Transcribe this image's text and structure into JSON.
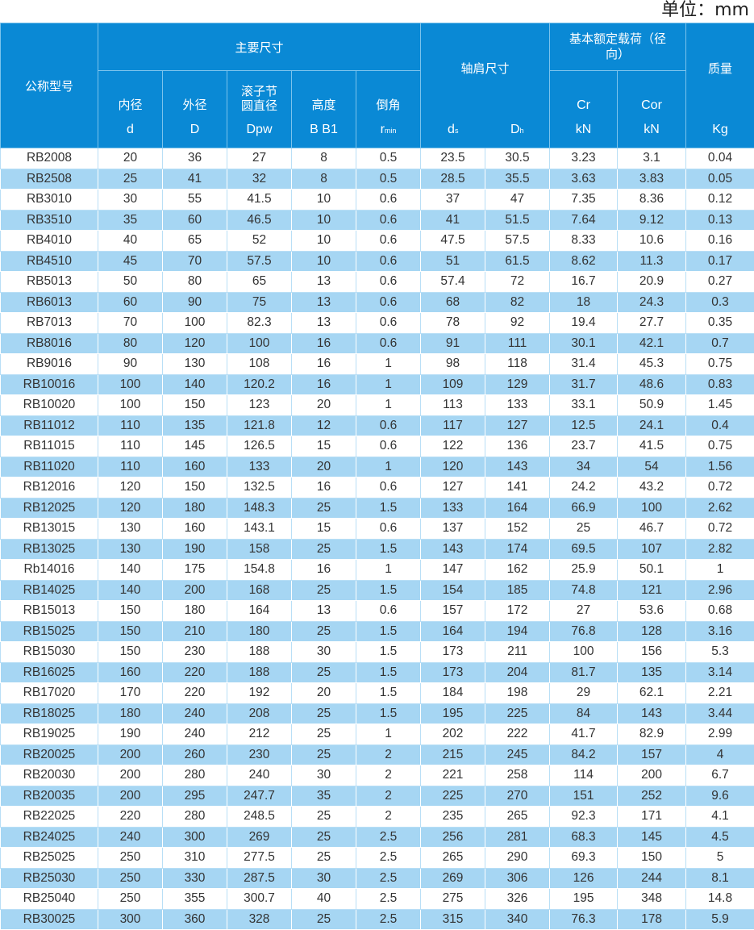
{
  "unit_label": "单位：mm",
  "colors": {
    "header": "#0a89d5",
    "stripe": "#a6d6f3"
  },
  "header": {
    "model": "公称型号",
    "main_dims": "主要尺寸",
    "inner": "内径",
    "outer": "外径",
    "pitch": "滚子节圆直径",
    "height": "高度",
    "chamfer": "倒角",
    "d": "d",
    "D": "D",
    "dpw": "Dpw",
    "b": "B B1",
    "r": "r",
    "r_sub": "min",
    "shoulder": "轴肩尺寸",
    "ds": "d",
    "ds_sub": "s",
    "dh": "D",
    "dh_sub": "h",
    "load": "基本额定载荷（径向）",
    "cr": "Cr",
    "cor": "Cor",
    "kn1": "kN",
    "kn2": "kN",
    "mass": "质量",
    "kg": "Kg"
  },
  "rows": [
    [
      "RB2008",
      "20",
      "36",
      "27",
      "8",
      "0.5",
      "23.5",
      "30.5",
      "3.23",
      "3.1",
      "0.04"
    ],
    [
      "RB2508",
      "25",
      "41",
      "32",
      "8",
      "0.5",
      "28.5",
      "35.5",
      "3.63",
      "3.83",
      "0.05"
    ],
    [
      "RB3010",
      "30",
      "55",
      "41.5",
      "10",
      "0.6",
      "37",
      "47",
      "7.35",
      "8.36",
      "0.12"
    ],
    [
      "RB3510",
      "35",
      "60",
      "46.5",
      "10",
      "0.6",
      "41",
      "51.5",
      "7.64",
      "9.12",
      "0.13"
    ],
    [
      "RB4010",
      "40",
      "65",
      "52",
      "10",
      "0.6",
      "47.5",
      "57.5",
      "8.33",
      "10.6",
      "0.16"
    ],
    [
      "RB4510",
      "45",
      "70",
      "57.5",
      "10",
      "0.6",
      "51",
      "61.5",
      "8.62",
      "11.3",
      "0.17"
    ],
    [
      "RB5013",
      "50",
      "80",
      "65",
      "13",
      "0.6",
      "57.4",
      "72",
      "16.7",
      "20.9",
      "0.27"
    ],
    [
      "RB6013",
      "60",
      "90",
      "75",
      "13",
      "0.6",
      "68",
      "82",
      "18",
      "24.3",
      "0.3"
    ],
    [
      "RB7013",
      "70",
      "100",
      "82.3",
      "13",
      "0.6",
      "78",
      "92",
      "19.4",
      "27.7",
      "0.35"
    ],
    [
      "RB8016",
      "80",
      "120",
      "100",
      "16",
      "0.6",
      "91",
      "111",
      "30.1",
      "42.1",
      "0.7"
    ],
    [
      "RB9016",
      "90",
      "130",
      "108",
      "16",
      "1",
      "98",
      "118",
      "31.4",
      "45.3",
      "0.75"
    ],
    [
      "RB10016",
      "100",
      "140",
      "120.2",
      "16",
      "1",
      "109",
      "129",
      "31.7",
      "48.6",
      "0.83"
    ],
    [
      "RB10020",
      "100",
      "150",
      "123",
      "20",
      "1",
      "113",
      "133",
      "33.1",
      "50.9",
      "1.45"
    ],
    [
      "RB11012",
      "110",
      "135",
      "121.8",
      "12",
      "0.6",
      "117",
      "127",
      "12.5",
      "24.1",
      "0.4"
    ],
    [
      "RB11015",
      "110",
      "145",
      "126.5",
      "15",
      "0.6",
      "122",
      "136",
      "23.7",
      "41.5",
      "0.75"
    ],
    [
      "RB11020",
      "110",
      "160",
      "133",
      "20",
      "1",
      "120",
      "143",
      "34",
      "54",
      "1.56"
    ],
    [
      "RB12016",
      "120",
      "150",
      "132.5",
      "16",
      "0.6",
      "127",
      "141",
      "24.2",
      "43.2",
      "0.72"
    ],
    [
      "RB12025",
      "120",
      "180",
      "148.3",
      "25",
      "1.5",
      "133",
      "164",
      "66.9",
      "100",
      "2.62"
    ],
    [
      "RB13015",
      "130",
      "160",
      "143.1",
      "15",
      "0.6",
      "137",
      "152",
      "25",
      "46.7",
      "0.72"
    ],
    [
      "RB13025",
      "130",
      "190",
      "158",
      "25",
      "1.5",
      "143",
      "174",
      "69.5",
      "107",
      "2.82"
    ],
    [
      "Rb14016",
      "140",
      "175",
      "154.8",
      "16",
      "1",
      "147",
      "162",
      "25.9",
      "50.1",
      "1"
    ],
    [
      "RB14025",
      "140",
      "200",
      "168",
      "25",
      "1.5",
      "154",
      "185",
      "74.8",
      "121",
      "2.96"
    ],
    [
      "RB15013",
      "150",
      "180",
      "164",
      "13",
      "0.6",
      "157",
      "172",
      "27",
      "53.6",
      "0.68"
    ],
    [
      "RB15025",
      "150",
      "210",
      "180",
      "25",
      "1.5",
      "164",
      "194",
      "76.8",
      "128",
      "3.16"
    ],
    [
      "RB15030",
      "150",
      "230",
      "188",
      "30",
      "1.5",
      "173",
      "211",
      "100",
      "156",
      "5.3"
    ],
    [
      "RB16025",
      "160",
      "220",
      "188",
      "25",
      "1.5",
      "173",
      "204",
      "81.7",
      "135",
      "3.14"
    ],
    [
      "RB17020",
      "170",
      "220",
      "192",
      "20",
      "1.5",
      "184",
      "198",
      "29",
      "62.1",
      "2.21"
    ],
    [
      "RB18025",
      "180",
      "240",
      "208",
      "25",
      "1.5",
      "195",
      "225",
      "84",
      "143",
      "3.44"
    ],
    [
      "RB19025",
      "190",
      "240",
      "212",
      "25",
      "1",
      "202",
      "222",
      "41.7",
      "82.9",
      "2.99"
    ],
    [
      "RB20025",
      "200",
      "260",
      "230",
      "25",
      "2",
      "215",
      "245",
      "84.2",
      "157",
      "4"
    ],
    [
      "RB20030",
      "200",
      "280",
      "240",
      "30",
      "2",
      "221",
      "258",
      "114",
      "200",
      "6.7"
    ],
    [
      "RB20035",
      "200",
      "295",
      "247.7",
      "35",
      "2",
      "225",
      "270",
      "151",
      "252",
      "9.6"
    ],
    [
      "RB22025",
      "220",
      "280",
      "248.5",
      "25",
      "2",
      "235",
      "265",
      "92.3",
      "171",
      "4.1"
    ],
    [
      "RB24025",
      "240",
      "300",
      "269",
      "25",
      "2.5",
      "256",
      "281",
      "68.3",
      "145",
      "4.5"
    ],
    [
      "RB25025",
      "250",
      "310",
      "277.5",
      "25",
      "2.5",
      "265",
      "290",
      "69.3",
      "150",
      "5"
    ],
    [
      "RB25030",
      "250",
      "330",
      "287.5",
      "30",
      "2.5",
      "269",
      "306",
      "126",
      "244",
      "8.1"
    ],
    [
      "RB25040",
      "250",
      "355",
      "300.7",
      "40",
      "2.5",
      "275",
      "326",
      "195",
      "348",
      "14.8"
    ],
    [
      "RB30025",
      "300",
      "360",
      "328",
      "25",
      "2.5",
      "315",
      "340",
      "76.3",
      "178",
      "5.9"
    ]
  ]
}
